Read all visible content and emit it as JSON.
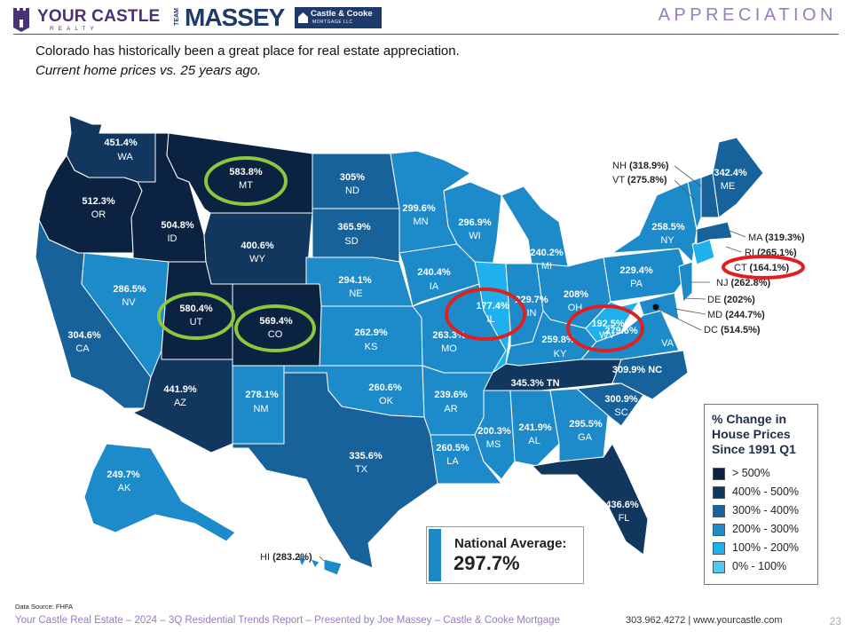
{
  "header": {
    "brand1_name": "YOUR CASTLE",
    "brand1_sub": "REALTY",
    "brand2_team": "TEAM",
    "brand2_name": "MASSEY",
    "brand2_cc": "Castle & Cooke",
    "brand2_cc_sub": "MORTGAGE LLC",
    "section_title": "APPRECIATION"
  },
  "intro": {
    "line1": "Colorado has historically been a great place for real estate appreciation.",
    "line2": "Current home prices vs. 25 years ago."
  },
  "colors": {
    "gt500": "#0b2341",
    "c400_500": "#12375e",
    "c300_400": "#17629a",
    "c200_300": "#1d8ac9",
    "c100_200": "#1fb1ee",
    "c0_100": "#55c8f0",
    "highlight_green": "#8dc63f",
    "highlight_red": "#e02020",
    "brand_purple": "#4b3277"
  },
  "states": [
    {
      "abbr": "WA",
      "value": "451.4%",
      "band": "400-500"
    },
    {
      "abbr": "OR",
      "value": "512.3%",
      "band": ">500"
    },
    {
      "abbr": "ID",
      "value": "504.8%",
      "band": ">500"
    },
    {
      "abbr": "MT",
      "value": "583.8%",
      "band": ">500"
    },
    {
      "abbr": "WY",
      "value": "400.6%",
      "band": "400-500"
    },
    {
      "abbr": "ND",
      "value": "305%",
      "band": "300-400"
    },
    {
      "abbr": "SD",
      "value": "365.9%",
      "band": "300-400"
    },
    {
      "abbr": "NE",
      "value": "294.1%",
      "band": "200-300"
    },
    {
      "abbr": "KS",
      "value": "262.9%",
      "band": "200-300"
    },
    {
      "abbr": "OK",
      "value": "260.6%",
      "band": "200-300"
    },
    {
      "abbr": "TX",
      "value": "335.6%",
      "band": "300-400"
    },
    {
      "abbr": "CA",
      "value": "304.6%",
      "band": "300-400"
    },
    {
      "abbr": "NV",
      "value": "286.5%",
      "band": "200-300"
    },
    {
      "abbr": "UT",
      "value": "580.4%",
      "band": ">500"
    },
    {
      "abbr": "CO",
      "value": "569.4%",
      "band": ">500"
    },
    {
      "abbr": "AZ",
      "value": "441.9%",
      "band": "400-500"
    },
    {
      "abbr": "NM",
      "value": "278.1%",
      "band": "200-300"
    },
    {
      "abbr": "MN",
      "value": "299.6%",
      "band": "200-300"
    },
    {
      "abbr": "IA",
      "value": "240.4%",
      "band": "200-300"
    },
    {
      "abbr": "MO",
      "value": "263.3%",
      "band": "200-300"
    },
    {
      "abbr": "AR",
      "value": "239.6%",
      "band": "200-300"
    },
    {
      "abbr": "LA",
      "value": "260.5%",
      "band": "200-300"
    },
    {
      "abbr": "WI",
      "value": "296.9%",
      "band": "200-300"
    },
    {
      "abbr": "IL",
      "value": "177.4%",
      "band": "100-200"
    },
    {
      "abbr": "MI",
      "value": "240.2%",
      "band": "200-300"
    },
    {
      "abbr": "IN",
      "value": "229.7%",
      "band": "200-300"
    },
    {
      "abbr": "OH",
      "value": "208%",
      "band": "200-300"
    },
    {
      "abbr": "KY",
      "value": "259.8%",
      "band": "200-300"
    },
    {
      "abbr": "TN",
      "value": "345.3%",
      "band": "300-400"
    },
    {
      "abbr": "MS",
      "value": "200.3%",
      "band": "200-300"
    },
    {
      "abbr": "AL",
      "value": "241.9%",
      "band": "200-300"
    },
    {
      "abbr": "GA",
      "value": "295.5%",
      "band": "200-300"
    },
    {
      "abbr": "FL",
      "value": "436.6%",
      "band": "400-500"
    },
    {
      "abbr": "SC",
      "value": "300.9%",
      "band": "300-400"
    },
    {
      "abbr": "NC",
      "value": "309.9%",
      "band": "300-400"
    },
    {
      "abbr": "VA",
      "value": "279.6%",
      "band": "200-300"
    },
    {
      "abbr": "WV",
      "value": "192.5%",
      "band": "100-200"
    },
    {
      "abbr": "PA",
      "value": "229.4%",
      "band": "200-300"
    },
    {
      "abbr": "NY",
      "value": "258.5%",
      "band": "200-300"
    },
    {
      "abbr": "ME",
      "value": "342.4%",
      "band": "300-400"
    },
    {
      "abbr": "AK",
      "value": "249.7%",
      "band": "200-300"
    },
    {
      "abbr": "HI",
      "value": "283.2%",
      "band": "200-300"
    },
    {
      "abbr": "NH",
      "value": "318.9%",
      "band": "300-400"
    },
    {
      "abbr": "VT",
      "value": "275.8%",
      "band": "200-300"
    },
    {
      "abbr": "MA",
      "value": "319.3%",
      "band": "300-400"
    },
    {
      "abbr": "RI",
      "value": "265.1%",
      "band": "200-300"
    },
    {
      "abbr": "CT",
      "value": "164.1%",
      "band": "100-200"
    },
    {
      "abbr": "NJ",
      "value": "262.8%",
      "band": "200-300"
    },
    {
      "abbr": "DE",
      "value": "202%",
      "band": "200-300"
    },
    {
      "abbr": "MD",
      "value": "244.7%",
      "band": "200-300"
    },
    {
      "abbr": "DC",
      "value": "514.5%",
      "band": ">500"
    }
  ],
  "map_labels": {
    "WA": "WA",
    "OR": "OR",
    "ID": "ID",
    "MT": "MT",
    "WY": "WY",
    "ND": "ND",
    "SD": "SD",
    "NE": "NE",
    "KS": "KS",
    "OK": "OK",
    "TX": "TX",
    "CA": "CA",
    "NV": "NV",
    "UT": "UT",
    "CO": "CO",
    "AZ": "AZ",
    "NM": "NM",
    "MN": "MN",
    "IA": "IA",
    "MO": "MO",
    "AR": "AR",
    "LA": "LA",
    "WI": "WI",
    "IL": "IL",
    "MI": "MI",
    "IN": "IN",
    "OH": "OH",
    "KY": "KY",
    "TN": "TN",
    "MS": "MS",
    "AL": "AL",
    "GA": "GA",
    "FL": "FL",
    "SC": "SC",
    "NC": "NC",
    "VA": "VA",
    "WV": "WV",
    "PA": "PA",
    "NY": "NY",
    "ME": "ME",
    "AK": "AK",
    "wa_v": "451.4%",
    "or_v": "512.3%",
    "id_v": "504.8%",
    "mt_v": "583.8%",
    "wy_v": "400.6%",
    "nd_v": "305%",
    "sd_v": "365.9%",
    "ne_v": "294.1%",
    "ks_v": "262.9%",
    "ok_v": "260.6%",
    "tx_v": "335.6%",
    "ca_v": "304.6%",
    "nv_v": "286.5%",
    "ut_v": "580.4%",
    "co_v": "569.4%",
    "az_v": "441.9%",
    "nm_v": "278.1%",
    "mn_v": "299.6%",
    "ia_v": "240.4%",
    "mo_v": "263.3%",
    "ar_v": "239.6%",
    "la_v": "260.5%",
    "wi_v": "296.9%",
    "il_v": "177.4%",
    "mi_v": "240.2%",
    "in_v": "229.7%",
    "oh_v": "208%",
    "ky_v": "259.8%",
    "tn_line": "345.3% TN",
    "ms_v": "200.3%",
    "al_v": "241.9%",
    "ga_v": "295.5%",
    "fl_v": "436.6%",
    "sc_v": "300.9%",
    "nc_line": "309.9% NC",
    "va_v": "279.6%",
    "wv_v": "192.5%",
    "pa_v": "229.4%",
    "ny_v": "258.5%",
    "me_v": "342.4%",
    "ak_v": "249.7%",
    "hi_abbr": "HI",
    "hi_val": "(283.2%)",
    "nh_abbr": "NH",
    "nh_val": "(318.9%)",
    "vt_abbr": "VT",
    "vt_val": "(275.8%)",
    "ma_abbr": "MA",
    "ma_val": "(319.3%)",
    "ri_abbr": "RI",
    "ri_val": "(265.1%)",
    "ct_abbr": "CT",
    "ct_val": "(164.1%)",
    "nj_abbr": "NJ",
    "nj_val": "(262.8%)",
    "de_abbr": "DE",
    "de_val": "(202%)",
    "md_abbr": "MD",
    "md_val": "(244.7%)",
    "dc_abbr": "DC",
    "dc_val": "(514.5%)"
  },
  "legend": {
    "title_l1": "% Change in",
    "title_l2": "House Prices",
    "title_l3": "Since 1991 Q1",
    "items": [
      {
        "label": "> 500%",
        "color": "#0b2341"
      },
      {
        "label": "400% - 500%",
        "color": "#12375e"
      },
      {
        "label": "300% - 400%",
        "color": "#17629a"
      },
      {
        "label": "200% - 300%",
        "color": "#1d8ac9"
      },
      {
        "label": "100% - 200%",
        "color": "#1fb1ee"
      },
      {
        "label": "0% - 100%",
        "color": "#55c8f0"
      }
    ]
  },
  "national_average": {
    "label": "National Average:",
    "value": "297.7%"
  },
  "source": "Data Source: FHFA",
  "footer": {
    "text": "Your Castle Real Estate – 2024 – 3Q Residential Trends Report – Presented by Joe Massey – Castle & Cooke Mortgage",
    "contact": "303.962.4272 | www.yourcastle.com",
    "page": "23"
  }
}
